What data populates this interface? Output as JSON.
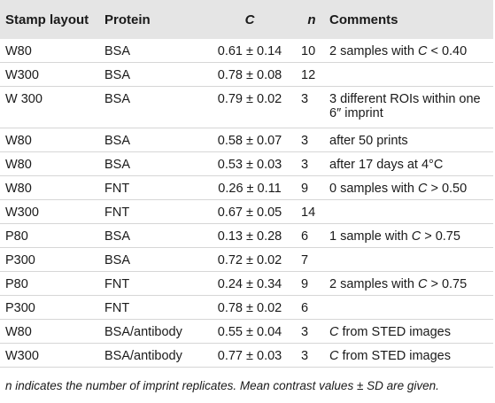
{
  "table": {
    "headers": {
      "layout": "Stamp layout",
      "protein": "Protein",
      "c": "C",
      "n": "n",
      "comments": "Comments"
    },
    "rows": [
      {
        "layout": "W80",
        "protein": "BSA",
        "c": "0.61 ± 0.14",
        "n": "10",
        "comments": "2 samples with C < 0.40"
      },
      {
        "layout": "W300",
        "protein": "BSA",
        "c": "0.78 ± 0.08",
        "n": "12",
        "comments": ""
      },
      {
        "layout": "W 300",
        "protein": "BSA",
        "c": "0.79 ± 0.02",
        "n": "3",
        "comments": "3 different ROIs within one 6″ imprint"
      },
      {
        "layout": "W80",
        "protein": "BSA",
        "c": "0.58 ± 0.07",
        "n": "3",
        "comments": "after 50 prints"
      },
      {
        "layout": "W80",
        "protein": "BSA",
        "c": "0.53 ± 0.03",
        "n": "3",
        "comments": "after 17 days at 4°C"
      },
      {
        "layout": "W80",
        "protein": "FNT",
        "c": "0.26 ± 0.11",
        "n": "9",
        "comments": "0 samples with C > 0.50"
      },
      {
        "layout": "W300",
        "protein": "FNT",
        "c": "0.67 ± 0.05",
        "n": "14",
        "comments": ""
      },
      {
        "layout": "P80",
        "protein": "BSA",
        "c": "0.13 ± 0.28",
        "n": "6",
        "comments": "1 sample with C > 0.75"
      },
      {
        "layout": "P300",
        "protein": "BSA",
        "c": "0.72 ± 0.02",
        "n": "7",
        "comments": ""
      },
      {
        "layout": "P80",
        "protein": "FNT",
        "c": "0.24 ± 0.34",
        "n": "9",
        "comments": "2 samples with C > 0.75"
      },
      {
        "layout": "P300",
        "protein": "FNT",
        "c": "0.78 ± 0.02",
        "n": "6",
        "comments": ""
      },
      {
        "layout": "W80",
        "protein": "BSA/antibody",
        "c": "0.55 ± 0.04",
        "n": "3",
        "comments": "C from STED images"
      },
      {
        "layout": "W300",
        "protein": "BSA/antibody",
        "c": "0.77 ± 0.03",
        "n": "3",
        "comments": "C from STED images"
      }
    ]
  },
  "footnote": "n indicates the number of imprint replicates. Mean contrast values ± SD are given."
}
